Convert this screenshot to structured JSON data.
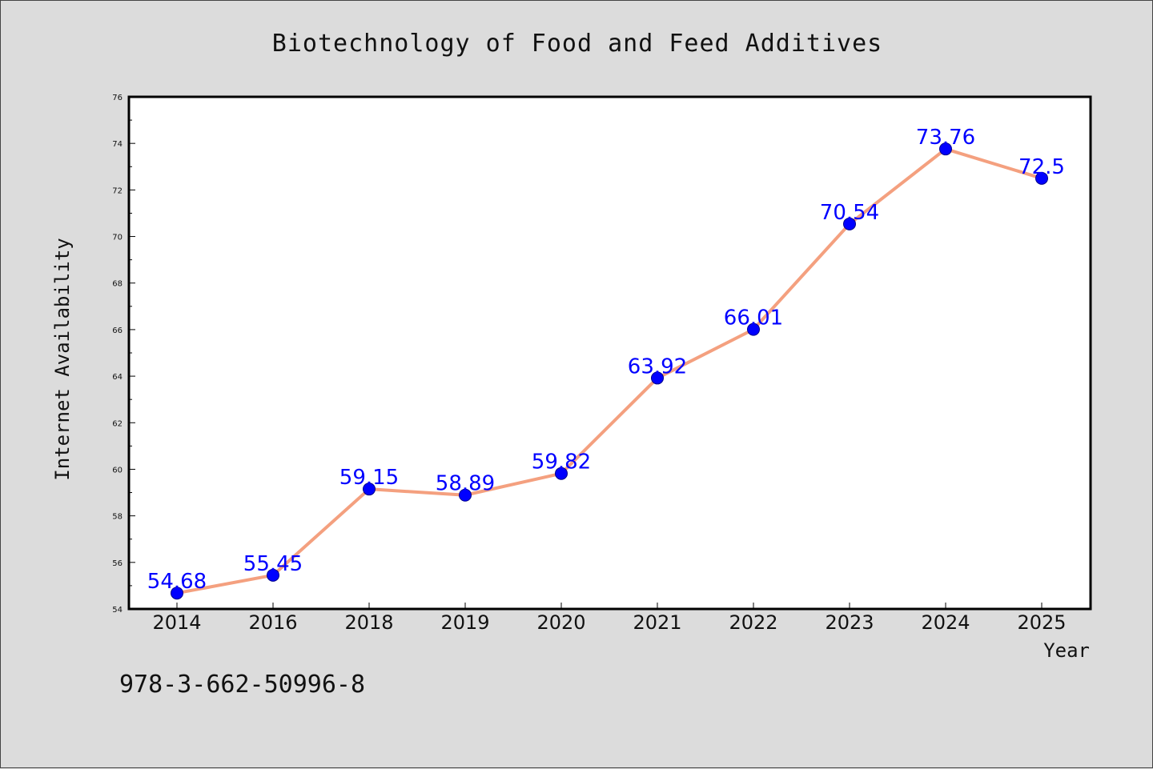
{
  "chart_data": {
    "type": "line",
    "title": "Biotechnology of Food and Feed Additives",
    "xlabel": "Year",
    "ylabel": "Internet Availability",
    "categories": [
      "2014",
      "2016",
      "2018",
      "2019",
      "2020",
      "2021",
      "2022",
      "2023",
      "2024",
      "2025"
    ],
    "series": [
      {
        "values": [
          54.68,
          55.45,
          59.15,
          58.89,
          59.82,
          63.92,
          66.01,
          70.54,
          73.76,
          72.5
        ],
        "data_labels": [
          "54.68",
          "55.45",
          "59.15",
          "58.89",
          "59.82",
          "63.92",
          "66.01",
          "70.54",
          "73.76",
          "72.5"
        ],
        "line_color": "#f4a07f",
        "marker_color": "#0000ff"
      }
    ],
    "ylim": [
      54,
      76
    ],
    "yticks": [
      "54",
      "56",
      "58",
      "60",
      "62",
      "64",
      "66",
      "68",
      "70",
      "72",
      "74",
      "76"
    ],
    "grid": false,
    "legend": "none",
    "background_color": "#dcdcdc",
    "plot_background_color": "#ffffff",
    "label_color": "#0000ff"
  },
  "footnote": "978-3-662-50996-8"
}
